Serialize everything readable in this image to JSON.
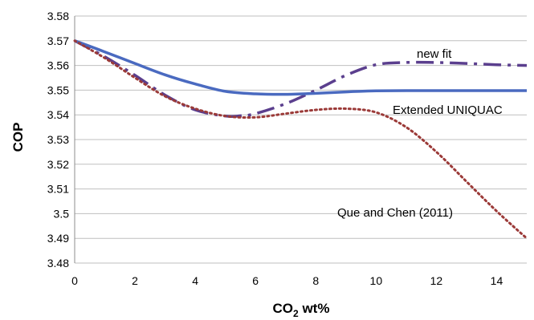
{
  "chart_data": {
    "type": "line",
    "title": "",
    "xlabel": "CO",
    "xlabel_sub": "2",
    "xlabel_suffix": " wt%",
    "ylabel": "COP",
    "xlim": [
      0,
      15
    ],
    "ylim": [
      3.48,
      3.58
    ],
    "xticks": [
      "0",
      "2",
      "4",
      "6",
      "8",
      "10",
      "12",
      "14"
    ],
    "yticks": [
      "3.48",
      "3.49",
      "3.5",
      "3.51",
      "3.52",
      "3.53",
      "3.54",
      "3.55",
      "3.56",
      "3.57",
      "3.58"
    ],
    "grid": "horizontal",
    "legend": "inline labels",
    "series": [
      {
        "name": "new fit",
        "color": "#5B3F8E",
        "style": "dash-dot",
        "x": [
          0,
          1,
          2,
          3,
          4,
          5,
          5.5,
          6,
          7,
          8,
          9,
          10,
          11,
          12,
          13,
          14,
          15
        ],
        "y": [
          3.57,
          3.5635,
          3.556,
          3.548,
          3.542,
          3.5395,
          3.5396,
          3.5405,
          3.5445,
          3.55,
          3.556,
          3.5603,
          3.5612,
          3.5612,
          3.5608,
          3.5603,
          3.56
        ]
      },
      {
        "name": "Extended UNIQUAC",
        "color": "#4A6AC0",
        "style": "solid",
        "x": [
          0,
          1,
          2,
          3,
          4,
          5,
          6,
          7,
          8,
          9,
          10,
          11,
          12,
          13,
          14,
          15
        ],
        "y": [
          3.57,
          3.5655,
          3.5608,
          3.5562,
          3.5525,
          3.5495,
          3.5485,
          3.5483,
          3.5487,
          3.5493,
          3.5497,
          3.5498,
          3.5498,
          3.5498,
          3.5498,
          3.5498
        ]
      },
      {
        "name": "Que and Chen (2011)",
        "color": "#9B3A38",
        "style": "dotted",
        "x": [
          0,
          1,
          2,
          3,
          4,
          5,
          6,
          7,
          8,
          9,
          10,
          11,
          12,
          13,
          14,
          15
        ],
        "y": [
          3.57,
          3.563,
          3.555,
          3.5475,
          3.5425,
          3.5395,
          3.539,
          3.5405,
          3.542,
          3.5425,
          3.541,
          3.535,
          3.525,
          3.513,
          3.501,
          3.49
        ]
      }
    ]
  }
}
